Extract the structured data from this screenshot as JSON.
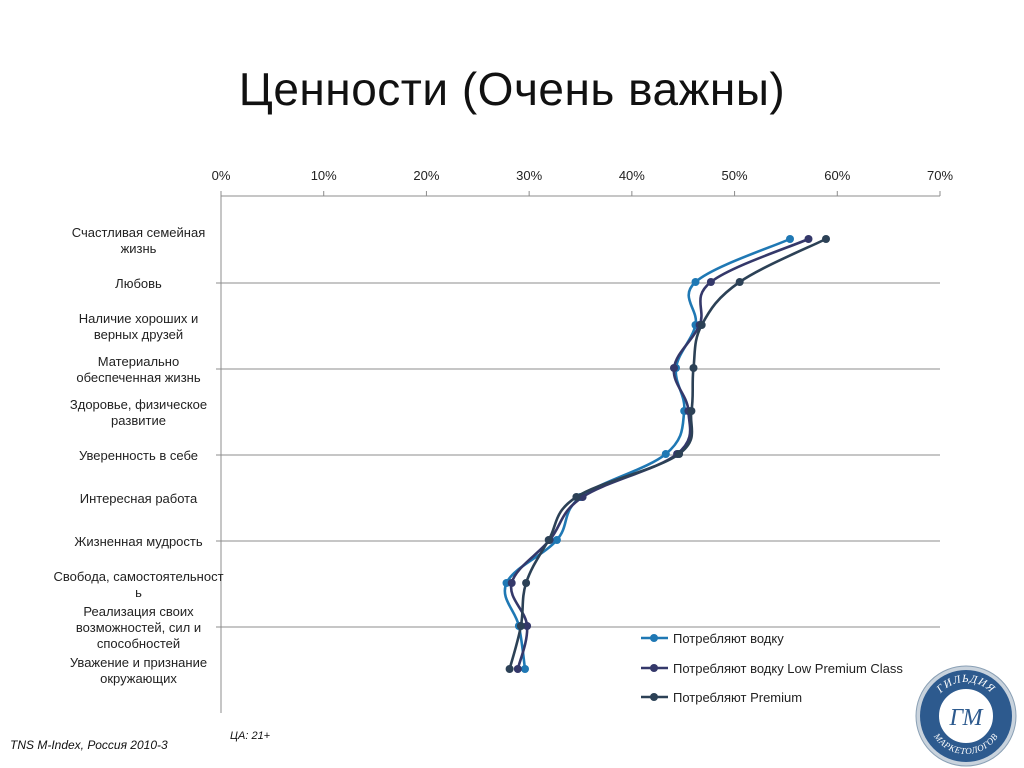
{
  "title": "Ценности (Очень важны)",
  "footer": {
    "source": "TNS M-Index, Россия 2010-3",
    "audience": "ЦА: 21+"
  },
  "logo": {
    "text_top": "ГИЛЬДИЯ",
    "monogram": "ГМ",
    "text_bottom": "МАРКЕТОЛОГОВ"
  },
  "colors": {
    "series_1": "#1f78b4",
    "series_2": "#34386a",
    "series_3": "#2c4156",
    "grid": "#8c8c8c",
    "logo_blue": "#2d5a8e"
  },
  "chart_data": {
    "type": "line",
    "orientation": "horizontal",
    "x_axis_position": "top",
    "xlim": [
      0,
      0.7
    ],
    "x_ticks": [
      "0%",
      "10%",
      "20%",
      "30%",
      "40%",
      "50%",
      "60%",
      "70%"
    ],
    "categories": [
      "Счастливая семейная жизнь",
      "Любовь",
      "Наличие хороших и верных друзей",
      "Материально обеспеченная жизнь",
      "Здоровье, физическое развитие",
      "Уверенность в себе",
      "Интересная работа",
      "Жизненная мудрость",
      "Свобода, самостоятельность",
      "Реализация своих возможностей, сил и способностей",
      "Уважение и признание окружающих"
    ],
    "category_label_lines": [
      [
        "Счастливая семейная",
        "жизнь"
      ],
      [
        "Любовь"
      ],
      [
        "Наличие хороших и",
        "верных друзей"
      ],
      [
        "Материально",
        "обеспеченная жизнь"
      ],
      [
        "Здоровье, физическое",
        "развитие"
      ],
      [
        "Уверенность в себе"
      ],
      [
        "Интересная работа"
      ],
      [
        "Жизненная мудрость"
      ],
      [
        "Свобода, самостоятельност",
        "ь"
      ],
      [
        "Реализация своих",
        "возможностей, сил и",
        "способностей"
      ],
      [
        "Уважение и признание",
        "окружающих"
      ]
    ],
    "series": [
      {
        "name": "Потребляют водку",
        "color": "#1f78b4",
        "values": [
          0.554,
          0.462,
          0.462,
          0.443,
          0.451,
          0.433,
          0.35,
          0.327,
          0.278,
          0.29,
          0.296
        ]
      },
      {
        "name": "Потребляют водку Low Premium Class",
        "color": "#34386a",
        "values": [
          0.572,
          0.477,
          0.466,
          0.441,
          0.455,
          0.444,
          0.352,
          0.32,
          0.283,
          0.298,
          0.289
        ]
      },
      {
        "name": "Потребляют Premium",
        "color": "#2c4156",
        "values": [
          0.589,
          0.505,
          0.468,
          0.46,
          0.458,
          0.446,
          0.346,
          0.319,
          0.297,
          0.292,
          0.281
        ]
      }
    ],
    "grid": "horizontal",
    "legend_position": "bottom-right"
  }
}
